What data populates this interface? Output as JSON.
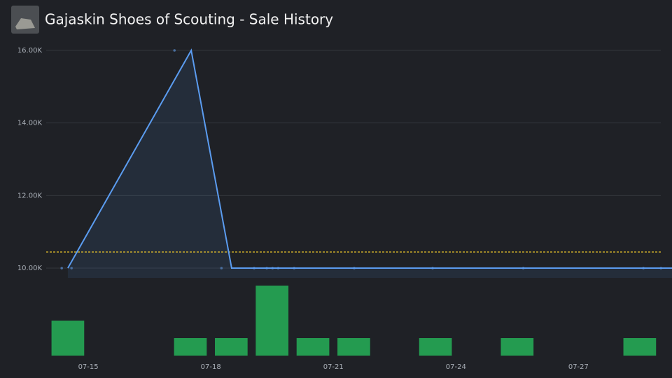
{
  "chart_data": {
    "type": "line",
    "title": "Gajaskin Shoes of Scouting - Sale History",
    "xlim": [
      13.97,
      29.29
    ],
    "xticks": [
      {
        "value": 15,
        "label": "07-15"
      },
      {
        "value": 18,
        "label": "07-18"
      },
      {
        "value": 21,
        "label": "07-21"
      },
      {
        "value": 24,
        "label": "07-24"
      },
      {
        "value": 27,
        "label": "07-27"
      }
    ],
    "ylim": [
      9730,
      16000
    ],
    "yticks": [
      {
        "value": 10000,
        "label": "10.00K"
      },
      {
        "value": 12000,
        "label": "12.00K"
      },
      {
        "value": 14000,
        "label": "14.00K"
      },
      {
        "value": 16000,
        "label": "16.00K"
      }
    ],
    "grid": true,
    "price": {
      "color": "#5b9cf0",
      "x": [
        14.5,
        17.52,
        18.51,
        29.29
      ],
      "values": [
        10000,
        16000,
        10000,
        10000
      ]
    },
    "sales": {
      "color": "#4a6fa0",
      "x": [
        14.35,
        14.59,
        17.11,
        18.26,
        19.06,
        19.37,
        19.51,
        19.65,
        20.04,
        21.51,
        23.43,
        25.65,
        28.59,
        29.02
      ],
      "values": [
        10000,
        10000,
        16000,
        10000,
        10000,
        10000,
        10000,
        10000,
        10000,
        10000,
        10000,
        10000,
        10000,
        10000
      ]
    },
    "average": {
      "color": "#e6c229",
      "value": 10444
    },
    "volume": {
      "color": "#249b50",
      "vlim": [
        0,
        4
      ],
      "x": [
        14.5,
        17.5,
        18.5,
        19.5,
        20.5,
        21.5,
        23.5,
        25.5,
        28.5
      ],
      "values": [
        2,
        1,
        1,
        4,
        1,
        1,
        1,
        1,
        1
      ]
    }
  }
}
